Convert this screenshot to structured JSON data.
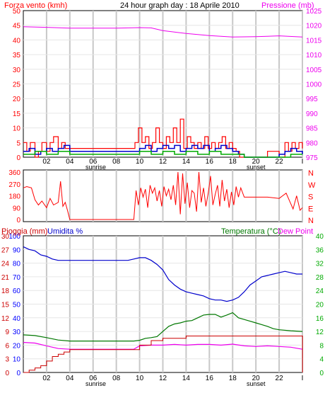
{
  "header": {
    "title": "24 hour graph day : 18 Aprile 2010",
    "left_label": "Forza vento (kmh)",
    "right_label": "Pressione (mb)"
  },
  "middle": {
    "compass": [
      "N",
      "W",
      "S",
      "E",
      "N"
    ]
  },
  "bottom": {
    "rain_label": "Pioggia (mm)",
    "humidity_label": "Umidita %",
    "temp_label": "Temperatura (°C)",
    "dew_label": "Dew Point"
  },
  "x_axis": {
    "ticks": [
      "02",
      "04",
      "06",
      "08",
      "10",
      "12",
      "14",
      "16",
      "18",
      "20",
      "22",
      "I"
    ],
    "sunrise_label": "sunrise",
    "sunset_label": "sunset"
  },
  "colors": {
    "wind": "#ff0000",
    "gust": "#0000cc",
    "avg": "#00aa00",
    "pressure": "#ee00ee",
    "direction": "#ff0000",
    "humidity": "#0000cc",
    "temperature": "#007700",
    "dewpoint": "#ee00ee",
    "rain": "#cc0000",
    "grid": "#c8c8c8",
    "left_axis": "#ff0000",
    "rain_axis": "#cc0000",
    "hum_axis": "#0000ff",
    "temp_axis": "#00aa00"
  },
  "chart_data": [
    {
      "type": "line",
      "title": "24 hour graph day : 18 Aprile 2010",
      "x_unit": "hour",
      "y_left": {
        "label": "Forza vento (kmh)",
        "ticks": [
          0,
          5,
          10,
          15,
          20,
          25,
          30,
          35,
          40,
          45,
          50
        ],
        "lim": [
          0,
          50
        ]
      },
      "y_right": {
        "label": "Pressione (mb)",
        "ticks": [
          975,
          980,
          985,
          990,
          995,
          1000,
          1005,
          1010,
          1015,
          1020,
          1025
        ],
        "lim": [
          975,
          1025
        ]
      },
      "series": [
        {
          "key": "pressure",
          "axis": "right",
          "x": [
            0,
            2,
            4,
            6,
            8,
            10,
            11,
            12,
            14,
            16,
            18,
            20,
            22,
            24
          ],
          "y": [
            1019.5,
            1019.3,
            1019,
            1019,
            1019,
            1019.2,
            1019.1,
            1018.2,
            1017.2,
            1016.5,
            1016,
            1016.1,
            1016.4,
            1016
          ]
        },
        {
          "key": "wind",
          "axis": "left",
          "x": [
            0,
            0.3,
            0.6,
            1,
            1.3,
            1.6,
            2,
            2.3,
            2.6,
            3,
            3.3,
            3.6,
            4,
            6,
            8,
            9.4,
            9.6,
            9.9,
            10.2,
            10.5,
            10.8,
            11.1,
            11.4,
            11.7,
            12,
            12.3,
            12.6,
            12.9,
            13.2,
            13.5,
            13.8,
            14.1,
            14.4,
            14.7,
            15,
            15.3,
            15.6,
            15.9,
            16.2,
            16.5,
            16.8,
            17.1,
            17.4,
            17.7,
            18,
            18.3,
            18.6,
            19,
            20,
            21,
            22,
            22.5,
            22.8,
            23.1,
            23.4,
            23.7,
            24
          ],
          "y": [
            5,
            2,
            5,
            0,
            2,
            5,
            2,
            5,
            7,
            3,
            5,
            3,
            3,
            3,
            3,
            3,
            5,
            10,
            5,
            7,
            3,
            5,
            10,
            5,
            3,
            7,
            5,
            10,
            5,
            13,
            3,
            7,
            5,
            3,
            5,
            3,
            7,
            3,
            5,
            3,
            5,
            7,
            3,
            5,
            3,
            2,
            0,
            0,
            0,
            2,
            0,
            5,
            2,
            5,
            3,
            5,
            3
          ]
        },
        {
          "key": "gust",
          "axis": "left",
          "x": [
            0,
            0.5,
            1,
            1.5,
            2,
            2.5,
            3,
            3.5,
            4,
            8,
            9.5,
            10,
            10.5,
            11,
            11.5,
            12,
            12.5,
            13,
            13.5,
            14,
            14.5,
            15,
            15.5,
            16,
            16.5,
            17,
            17.5,
            18,
            18.5,
            19,
            21,
            22,
            22.5,
            23,
            23.5,
            24
          ],
          "y": [
            2,
            3,
            1,
            2,
            3,
            2,
            3,
            4,
            2,
            2,
            2,
            3,
            4,
            2,
            3,
            4,
            3,
            4,
            2,
            3,
            4,
            3,
            4,
            2,
            3,
            4,
            3,
            2,
            1,
            0,
            0,
            1,
            2,
            3,
            2,
            1
          ]
        },
        {
          "key": "avg",
          "axis": "left",
          "x": [
            0,
            1,
            2,
            3,
            4,
            8,
            9.5,
            10,
            11,
            12,
            13,
            14,
            15,
            16,
            17,
            18,
            19,
            21,
            22,
            23,
            24
          ],
          "y": [
            1,
            2,
            1,
            2,
            1,
            1,
            1,
            2,
            1,
            2,
            1,
            2,
            1,
            2,
            1,
            1,
            0,
            0,
            0,
            1,
            1
          ]
        }
      ]
    },
    {
      "type": "line",
      "x_unit": "hour",
      "y_left": {
        "label": "",
        "ticks": [
          0,
          90,
          180,
          270,
          360
        ],
        "lim": [
          0,
          360
        ]
      },
      "y_right_labels": [
        "N",
        "W",
        "S",
        "E",
        "N"
      ],
      "series": [
        {
          "key": "direction",
          "x": [
            0,
            0.3,
            0.7,
            1,
            1.3,
            1.6,
            2,
            2.3,
            2.6,
            3,
            3.2,
            3.4,
            3.6,
            3.8,
            4,
            5,
            6,
            7,
            8,
            9,
            9.5,
            9.7,
            9.9,
            10.1,
            10.3,
            10.5,
            10.7,
            10.9,
            11.1,
            11.3,
            11.5,
            11.7,
            11.9,
            12.1,
            12.3,
            12.5,
            12.7,
            12.9,
            13.1,
            13.3,
            13.5,
            13.7,
            13.9,
            14.1,
            14.3,
            14.5,
            14.7,
            14.9,
            15.1,
            15.3,
            15.5,
            15.7,
            15.9,
            16.1,
            16.3,
            16.5,
            16.7,
            16.9,
            17.1,
            17.3,
            17.5,
            17.7,
            17.9,
            18.1,
            18.3,
            18.5,
            18.7,
            19,
            20,
            21,
            22,
            22.3,
            22.6,
            22.9,
            23.2,
            23.5,
            23.8,
            24
          ],
          "y": [
            240,
            250,
            240,
            150,
            110,
            140,
            90,
            160,
            110,
            130,
            290,
            100,
            130,
            70,
            0,
            0,
            0,
            0,
            0,
            0,
            0,
            220,
            110,
            240,
            170,
            230,
            90,
            260,
            200,
            240,
            140,
            220,
            100,
            250,
            180,
            230,
            150,
            260,
            110,
            360,
            40,
            350,
            120,
            280,
            90,
            220,
            200,
            60,
            360,
            130,
            240,
            100,
            200,
            330,
            110,
            190,
            260,
            100,
            300,
            140,
            230,
            90,
            210,
            110,
            250,
            170,
            240,
            170,
            170,
            170,
            160,
            180,
            200,
            140,
            80,
            180,
            70,
            90
          ]
        }
      ]
    },
    {
      "type": "line",
      "x_unit": "hour",
      "y_rain": {
        "label": "Pioggia (mm)",
        "ticks": [
          0,
          3,
          6,
          9,
          12,
          15,
          18,
          21,
          24,
          27,
          30
        ],
        "lim": [
          0,
          30
        ]
      },
      "y_humidity": {
        "label": "Umidita %",
        "ticks": [
          0,
          10,
          20,
          30,
          40,
          50,
          60,
          70,
          80,
          90,
          100
        ],
        "lim": [
          0,
          100
        ]
      },
      "y_temp": {
        "label": "Temperatura (°C)",
        "ticks": [
          0,
          4,
          8,
          12,
          16,
          20,
          24,
          28,
          32,
          36,
          40
        ],
        "lim": [
          0,
          40
        ]
      },
      "series": [
        {
          "key": "humidity",
          "axis": "humidity",
          "x": [
            0,
            0.5,
            1,
            1.5,
            2,
            2.5,
            3,
            3.5,
            4,
            6,
            8,
            9,
            9.5,
            10,
            10.5,
            11,
            11.5,
            12,
            12.5,
            13,
            13.5,
            14,
            14.5,
            15,
            15.5,
            16,
            16.5,
            17,
            17.5,
            18,
            18.5,
            19,
            19.5,
            20,
            20.5,
            21,
            21.5,
            22,
            22.5,
            23,
            23.5,
            24
          ],
          "y": [
            92,
            90,
            89,
            86,
            85,
            83,
            82,
            82,
            82,
            82,
            82,
            82,
            83,
            84,
            84,
            82,
            79,
            75,
            68,
            64,
            61,
            59,
            58,
            57,
            56,
            54,
            53,
            53,
            52,
            53,
            55,
            59,
            64,
            67,
            70,
            71,
            72,
            73,
            74,
            73,
            72,
            72
          ]
        },
        {
          "key": "temperature",
          "axis": "temp",
          "x": [
            0,
            1,
            2,
            3,
            4,
            6,
            8,
            9.5,
            10,
            10.5,
            11,
            11.5,
            12,
            12.5,
            13,
            13.5,
            14,
            14.5,
            15,
            15.5,
            16,
            16.5,
            17,
            17.5,
            18,
            18.5,
            19,
            19.5,
            20,
            20.5,
            21,
            21.5,
            22,
            23,
            24
          ],
          "y": [
            11,
            10.8,
            10.2,
            9.5,
            9.2,
            9.2,
            9.2,
            9.2,
            9.4,
            10,
            10.2,
            10.5,
            12,
            13.5,
            14.2,
            14.5,
            15,
            15.2,
            16,
            16.8,
            17,
            17,
            16.2,
            16.8,
            17.5,
            16,
            15.5,
            15,
            14.5,
            14,
            13.5,
            12.8,
            12.5,
            12.2,
            12
          ]
        },
        {
          "key": "dewpoint",
          "axis": "temp",
          "x": [
            0,
            1,
            2,
            3,
            4,
            6,
            8,
            9.5,
            10,
            11,
            12,
            13,
            14,
            15,
            16,
            17,
            18,
            19,
            20,
            21,
            22,
            23,
            24
          ],
          "y": [
            8.8,
            8.6,
            7.8,
            7,
            6.8,
            6.8,
            6.8,
            6.8,
            7.8,
            8,
            8,
            8.2,
            8,
            8.2,
            8.2,
            8,
            8.3,
            7.8,
            7.6,
            7.8,
            7.6,
            7.4,
            6.8
          ]
        },
        {
          "key": "rain",
          "axis": "rain",
          "x": [
            0,
            0.5,
            1,
            1.5,
            2,
            2.5,
            3,
            3.5,
            4,
            8,
            9.5,
            10,
            11,
            12,
            14,
            16,
            18,
            20,
            22,
            24,
            24.01
          ],
          "y": [
            0,
            0.5,
            1,
            1.5,
            2.5,
            3.5,
            4,
            4.5,
            5,
            5,
            5,
            6,
            7,
            7.5,
            8,
            8,
            8,
            8,
            8,
            8,
            0
          ]
        }
      ]
    }
  ]
}
